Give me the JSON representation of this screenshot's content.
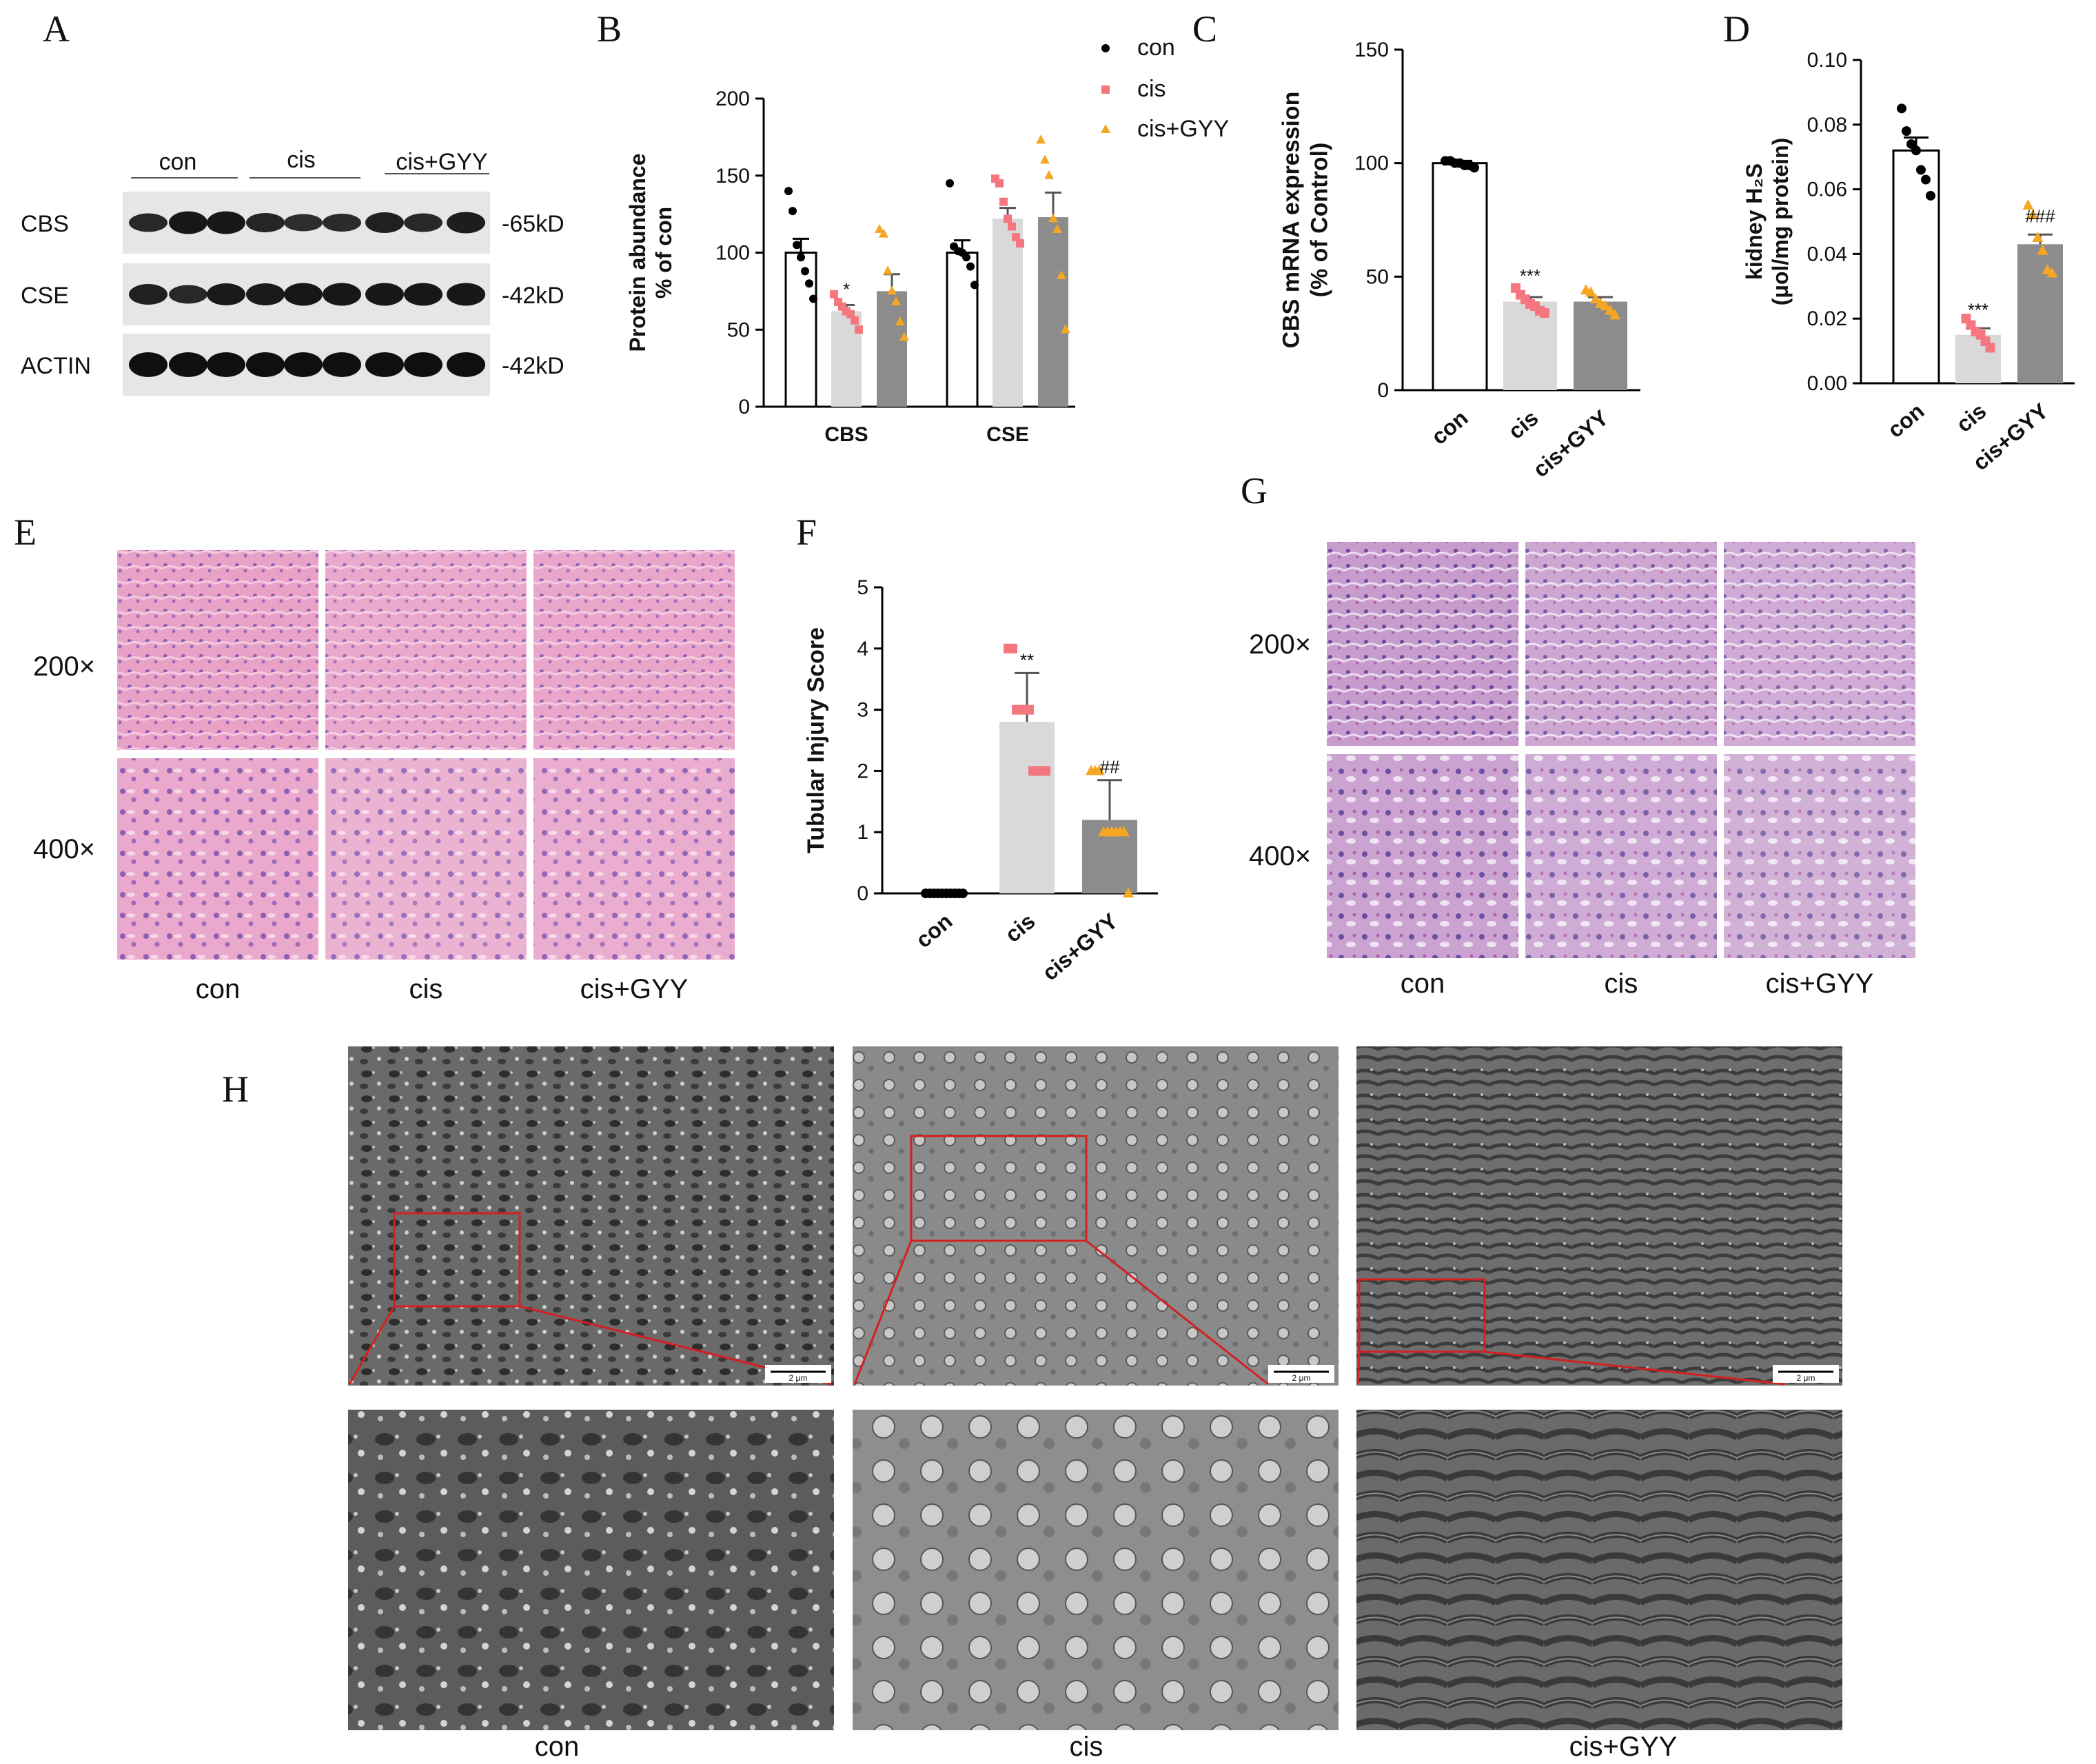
{
  "panel_letters": [
    "A",
    "B",
    "C",
    "D",
    "E",
    "F",
    "G",
    "H"
  ],
  "western_blot": {
    "groups": [
      "con",
      "cis",
      "cis+GYY"
    ],
    "bands": [
      {
        "name": "CBS",
        "size": "-65kD"
      },
      {
        "name": "CSE",
        "size": "-42kD"
      },
      {
        "name": "ACTIN",
        "size": "-42kD"
      }
    ]
  },
  "histology_E": {
    "magnifications": [
      "200×",
      "400×"
    ],
    "groups": [
      "con",
      "cis",
      "cis+GYY"
    ]
  },
  "histology_G": {
    "magnifications": [
      "200×",
      "400×"
    ],
    "groups": [
      "con",
      "cis",
      "cis+GYY"
    ]
  },
  "tem_H": {
    "groups": [
      "con",
      "cis",
      "cis+GYY"
    ],
    "scale_bar": "2 μm"
  },
  "chart_data": [
    {
      "panel": "B",
      "type": "bar",
      "categories": [
        "CBS",
        "CSE"
      ],
      "ylabel": "Protein abundance\n% of con",
      "ylim": [
        0,
        200
      ],
      "yticks": [
        0,
        50,
        100,
        150,
        200
      ],
      "legend": {
        "placement": "top-right",
        "entries": [
          "con",
          "cis",
          "cis+GYY"
        ]
      },
      "series": [
        {
          "name": "con",
          "values": [
            100,
            100
          ],
          "errors": [
            9,
            8
          ],
          "color": "#ffffff",
          "point_color": "#000000",
          "points": [
            [
              140,
              127,
              105,
              97,
              88,
              80,
              70
            ],
            [
              145,
              104,
              101,
              100,
              97,
              91,
              79
            ]
          ]
        },
        {
          "name": "cis",
          "values": [
            62,
            122
          ],
          "errors": [
            4,
            7
          ],
          "color": "#d9d9d9",
          "point_color": "#f4777f",
          "points": [
            [
              73,
              68,
              65,
              62,
              60,
              56,
              50
            ],
            [
              148,
              145,
              133,
              122,
              117,
              110,
              106
            ]
          ]
        },
        {
          "name": "cis+GYY",
          "values": [
            75,
            123
          ],
          "errors": [
            11,
            16
          ],
          "color": "#8c8c8c",
          "point_color": "#f5a623",
          "points": [
            [
              115,
              112,
              88,
              75,
              68,
              55,
              45
            ],
            [
              173,
              160,
              150,
              122,
              115,
              85,
              50
            ]
          ]
        }
      ],
      "annotations": [
        {
          "category": "CBS",
          "series": "cis",
          "text": "*"
        }
      ]
    },
    {
      "panel": "C",
      "type": "bar",
      "categories": [
        "con",
        "cis",
        "cis+GYY"
      ],
      "ylabel": "CBS mRNA expression\n(% of Control)",
      "ylim": [
        0,
        150
      ],
      "yticks": [
        0,
        50,
        100,
        150
      ],
      "values": [
        100,
        39,
        39
      ],
      "errors": [
        1,
        2,
        2
      ],
      "colors": [
        "#ffffff",
        "#d9d9d9",
        "#8c8c8c"
      ],
      "point_colors": [
        "#000000",
        "#f4777f",
        "#f5a623"
      ],
      "points": [
        [
          101,
          101,
          100,
          100,
          99,
          99,
          98
        ],
        [
          45,
          42,
          40,
          38,
          37,
          35,
          34
        ],
        [
          44,
          43,
          40,
          38,
          37,
          35,
          33
        ]
      ],
      "annotations": [
        {
          "category": "cis",
          "text": "***"
        }
      ]
    },
    {
      "panel": "D",
      "type": "bar",
      "categories": [
        "con",
        "cis",
        "cis+GYY"
      ],
      "ylabel": "kidney H₂S\n(μol/mg protein)",
      "ylim": [
        0,
        0.1
      ],
      "yticks": [
        0.0,
        0.02,
        0.04,
        0.06,
        0.08,
        0.1
      ],
      "values": [
        0.072,
        0.015,
        0.043
      ],
      "errors": [
        0.004,
        0.002,
        0.003
      ],
      "colors": [
        "#ffffff",
        "#d9d9d9",
        "#8c8c8c"
      ],
      "point_colors": [
        "#000000",
        "#f4777f",
        "#f5a623"
      ],
      "points": [
        [
          0.085,
          0.078,
          0.074,
          0.072,
          0.066,
          0.063,
          0.058
        ],
        [
          0.02,
          0.018,
          0.016,
          0.015,
          0.013,
          0.011
        ],
        [
          0.055,
          0.052,
          0.045,
          0.041,
          0.035,
          0.034
        ]
      ],
      "annotations": [
        {
          "category": "cis",
          "text": "***"
        },
        {
          "category": "cis+GYY",
          "text": "###"
        }
      ]
    },
    {
      "panel": "F",
      "type": "bar",
      "categories": [
        "con",
        "cis",
        "cis+GYY"
      ],
      "ylabel": "Tubular Injury Score",
      "ylim": [
        0,
        5
      ],
      "yticks": [
        0,
        1,
        2,
        3,
        4,
        5
      ],
      "values": [
        0,
        2.8,
        1.2
      ],
      "errors": [
        0,
        0.8,
        0.65
      ],
      "colors": [
        "#ffffff",
        "#d9d9d9",
        "#8c8c8c"
      ],
      "point_colors": [
        "#000000",
        "#f4777f",
        "#f5a623"
      ],
      "points": [
        [
          0,
          0,
          0,
          0,
          0,
          0,
          0,
          0,
          0,
          0
        ],
        [
          4,
          4,
          3,
          3,
          3,
          3,
          2,
          2,
          2,
          2
        ],
        [
          2,
          2,
          2,
          1,
          1,
          1,
          1,
          1,
          1,
          0
        ]
      ],
      "annotations": [
        {
          "category": "cis",
          "text": "**"
        },
        {
          "category": "cis+GYY",
          "text": "##"
        }
      ]
    }
  ]
}
